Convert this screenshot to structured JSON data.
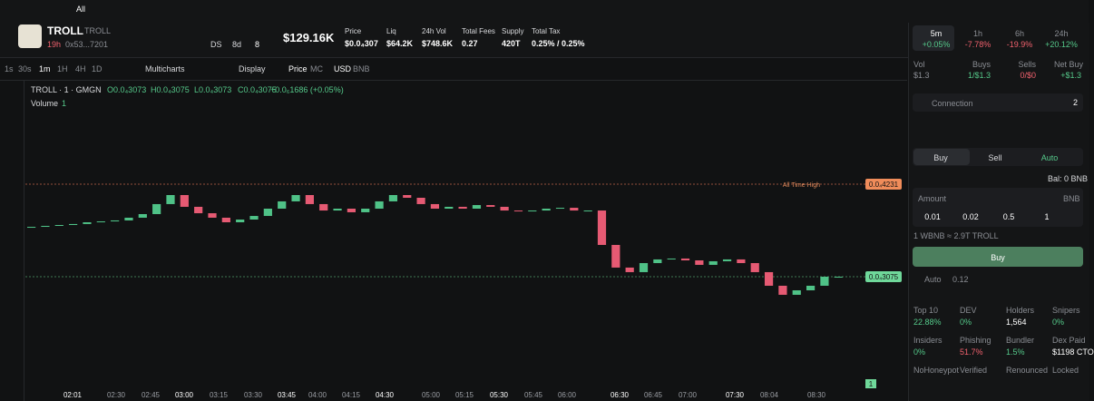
{
  "topbar": {
    "filter": "All"
  },
  "token": {
    "name": "TROLL",
    "symbol": "TROLL",
    "age": "19h",
    "address": "0x53...7201",
    "ds": "DS",
    "days": "8d",
    "count": "8"
  },
  "market_cap": "$129.16K",
  "stats": [
    {
      "label": "Price",
      "value": "$0.0₄307"
    },
    {
      "label": "Liq",
      "value": "$64.2K"
    },
    {
      "label": "24h Vol",
      "value": "$748.6K"
    },
    {
      "label": "Total Fees",
      "value": "0.27"
    },
    {
      "label": "Supply",
      "value": "420T"
    },
    {
      "label": "Total Tax",
      "value": "0.25% / 0.25%"
    }
  ],
  "timeframes": [
    {
      "label": "5m",
      "change": "+0.05%"
    },
    {
      "label": "1h",
      "change": "-7.78%"
    },
    {
      "label": "6h",
      "change": "-19.9%"
    },
    {
      "label": "24h",
      "change": "+20.12%"
    }
  ],
  "toolbar": {
    "intervals": [
      "1s",
      "30s",
      "1m",
      "1H",
      "4H",
      "1D"
    ],
    "multicharts": "Multicharts",
    "display": "Display",
    "price": "Price",
    "mc": "MC",
    "usd": "USD",
    "bnb": "BNB"
  },
  "legend": {
    "title": "TROLL · 1 · GMGN",
    "open": "O0.0₄3073",
    "high": "H0.0₄3075",
    "low": "L0.0₄3073",
    "close": "C0.0₄3075",
    "change": "+0.0₆1686 (+0.05%)",
    "volume": "Volume",
    "volume_value": "1"
  },
  "price_scale": {
    "ath_text": "All Time High",
    "ath": {
      "value": 4.231e-05,
      "label": "0.0₄4231"
    },
    "last": {
      "value": 3.075e-05,
      "label": "0.0₄3075"
    },
    "volume_tag": "1"
  },
  "price_chart": {
    "closes": [
      3.698e-05,
      3.71e-05,
      3.721e-05,
      3.733e-05,
      3.755e-05,
      3.766e-05,
      3.778e-05,
      3.812e-05,
      3.857e-05,
      3.982e-05,
      4.095e-05,
      3.948e-05,
      3.868e-05,
      3.812e-05,
      3.755e-05,
      3.789e-05,
      3.834e-05,
      3.925e-05,
      4.016e-05,
      4.095e-05,
      3.982e-05,
      3.902e-05,
      3.925e-05,
      3.88e-05,
      3.925e-05,
      4.016e-05,
      4.095e-05,
      4.061e-05,
      3.982e-05,
      3.925e-05,
      3.948e-05,
      3.925e-05,
      3.97e-05,
      3.948e-05,
      3.902e-05,
      3.891e-05,
      3.902e-05,
      3.925e-05,
      3.936e-05,
      3.902e-05,
      3.902e-05,
      3.472e-05,
      3.189e-05,
      3.132e-05,
      3.245e-05,
      3.291e-05,
      3.302e-05,
      3.279e-05,
      3.223e-05,
      3.268e-05,
      3.291e-05,
      3.245e-05,
      3.132e-05,
      2.962e-05,
      2.849e-05,
      2.905e-05,
      2.962e-05,
      3.075e-05,
      3.075e-05
    ]
  },
  "time_labels": [
    "02:01",
    "02:30",
    "02:45",
    "03:00",
    "03:15",
    "03:30",
    "03:45",
    "04:00",
    "04:15",
    "04:30",
    "05:00",
    "05:15",
    "05:30",
    "05:45",
    "06:00",
    "06:30",
    "06:45",
    "07:00",
    "07:30",
    "08:04",
    "08:30"
  ],
  "activity": [
    {
      "label": "Vol",
      "value": "$1.3"
    },
    {
      "label": "Buys",
      "value": "1/$1.3"
    },
    {
      "label": "Sells",
      "value": "0/$0"
    },
    {
      "label": "Net Buy",
      "value": "+$1.3"
    }
  ],
  "trade": {
    "connection": "Connection",
    "connection_count": "2",
    "tabs": [
      "Buy",
      "Sell",
      "Auto"
    ],
    "balance": "Bal: 0 BNB",
    "amount": "Amount",
    "currency": "BNB",
    "presets": [
      "0.01",
      "0.02",
      "0.5",
      "1"
    ],
    "rate": "1 WBNB ≈ 2.9T TROLL",
    "buy_button": "Buy",
    "auto": "Auto",
    "gas": "0.12"
  },
  "audit": [
    {
      "label": "Top 10",
      "value": "22.88%"
    },
    {
      "label": "DEV",
      "value": "0%"
    },
    {
      "label": "Holders",
      "value": "1,564"
    },
    {
      "label": "Snipers",
      "value": "0%"
    },
    {
      "label": "Insiders",
      "value": "0%"
    },
    {
      "label": "Phishing",
      "value": "51.7%"
    },
    {
      "label": "Bundler",
      "value": "1.5%"
    },
    {
      "label": "Dex Paid",
      "value": "$1198 CTO"
    },
    {
      "label": "NoHoneypot"
    },
    {
      "label": "Verified"
    },
    {
      "label": "Renounced"
    },
    {
      "label": "Locked"
    }
  ]
}
